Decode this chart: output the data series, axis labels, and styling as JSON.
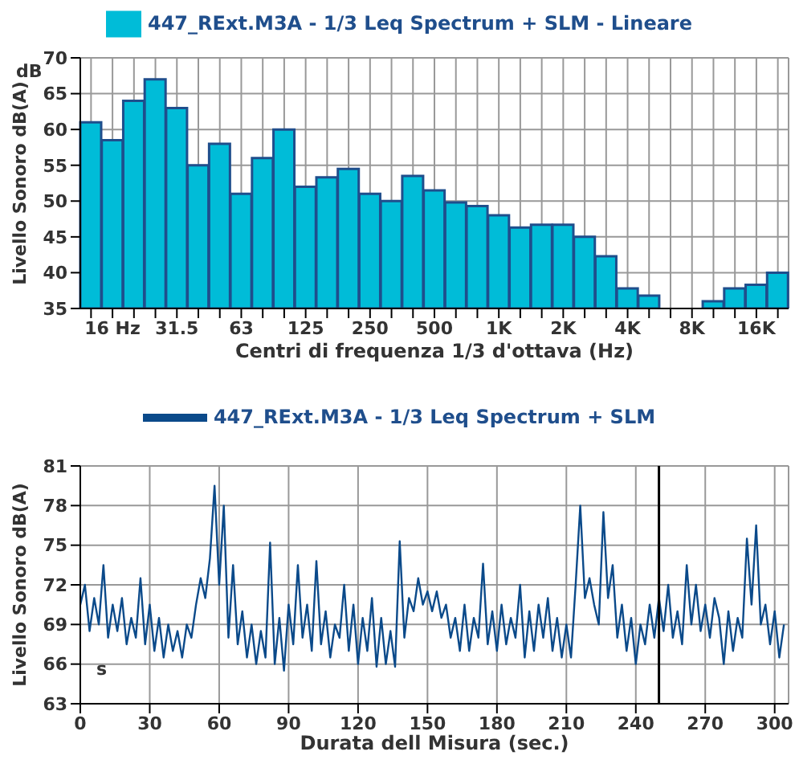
{
  "chart_data": [
    {
      "type": "bar",
      "categories": [
        null,
        "16 Hz",
        null,
        null,
        "31.5",
        null,
        null,
        "63",
        null,
        null,
        "125",
        null,
        null,
        "250",
        null,
        null,
        "500",
        null,
        null,
        "1K",
        null,
        null,
        "2K",
        null,
        null,
        "4K",
        null,
        null,
        "8K",
        null,
        null,
        "16K",
        null
      ],
      "series": [
        {
          "name": "447_RExt.M3A - 1/3 Leq Spectrum + SLM - Lineare",
          "color": "#00bcd8",
          "values": [
            61,
            58.5,
            64,
            67,
            63,
            55,
            58,
            51,
            56,
            60,
            52,
            53.3,
            54.5,
            51,
            50,
            53.5,
            51.5,
            49.8,
            49.3,
            48,
            46.3,
            46.7,
            46.7,
            45,
            42.3,
            37.8,
            36.8,
            35,
            35,
            36,
            37.8,
            38.3,
            40
          ]
        }
      ],
      "xlabel": "Centri di frequenza 1/3 d'ottava (Hz)",
      "ylabel": "Livello Sonoro dB(A)",
      "annotations": [
        "dB"
      ],
      "ylim": [
        35,
        70
      ],
      "yticks": [
        35,
        40,
        45,
        50,
        55,
        60,
        65,
        70
      ],
      "grid": true,
      "legend": "top"
    },
    {
      "type": "line",
      "x": [
        0,
        2,
        4,
        6,
        8,
        10,
        12,
        14,
        16,
        18,
        20,
        22,
        24,
        26,
        28,
        30,
        32,
        34,
        36,
        38,
        40,
        42,
        44,
        46,
        48,
        50,
        52,
        54,
        56,
        58,
        60,
        62,
        64,
        66,
        68,
        70,
        72,
        74,
        76,
        78,
        80,
        82,
        84,
        86,
        88,
        90,
        92,
        94,
        96,
        98,
        100,
        102,
        104,
        106,
        108,
        110,
        112,
        114,
        116,
        118,
        120,
        122,
        124,
        126,
        128,
        130,
        132,
        134,
        136,
        138,
        140,
        142,
        144,
        146,
        148,
        150,
        152,
        154,
        156,
        158,
        160,
        162,
        164,
        166,
        168,
        170,
        172,
        174,
        176,
        178,
        180,
        182,
        184,
        186,
        188,
        190,
        192,
        194,
        196,
        198,
        200,
        202,
        204,
        206,
        208,
        210,
        212,
        214,
        216,
        218,
        220,
        222,
        224,
        226,
        228,
        230,
        232,
        234,
        236,
        238,
        240,
        242,
        244,
        246,
        248,
        250,
        252,
        254,
        256,
        258,
        260,
        262,
        264,
        266,
        268,
        270,
        272,
        274,
        276,
        278,
        280,
        282,
        284,
        286,
        288,
        290,
        292,
        294,
        296,
        298,
        300,
        302,
        304
      ],
      "series": [
        {
          "name": "447_RExt.M3A - 1/3 Leq Spectrum + SLM",
          "color": "#0b4a8a",
          "values": [
            70.5,
            72,
            68.5,
            71,
            69,
            73.5,
            68,
            70.5,
            68.5,
            71,
            67.5,
            69.5,
            68,
            72.5,
            67.5,
            70.5,
            67,
            69.5,
            66.5,
            69,
            67,
            68.5,
            66.5,
            69,
            68,
            70.5,
            72.5,
            71,
            74,
            79.5,
            72,
            78,
            68,
            73.5,
            67.5,
            70,
            66.5,
            69,
            66,
            68.5,
            66.5,
            75.2,
            66,
            69.5,
            65.5,
            70.5,
            67.5,
            73.5,
            68,
            70.5,
            67,
            73.8,
            67.5,
            70,
            66.5,
            69,
            68,
            72,
            67,
            70.5,
            66,
            69.5,
            67,
            71,
            65.8,
            69.5,
            66,
            68.5,
            65.8,
            75.3,
            68,
            71,
            70,
            72.5,
            70.5,
            71.5,
            70,
            71.5,
            69.5,
            70.5,
            68,
            69.5,
            67,
            70.5,
            67,
            69.5,
            68,
            73.6,
            67.5,
            70,
            67,
            70.5,
            67.5,
            69.5,
            68,
            72,
            66.5,
            70,
            67,
            70.5,
            68,
            71,
            67,
            69.5,
            66.5,
            69,
            66.5,
            72,
            78,
            71,
            72.5,
            70.5,
            69,
            77.5,
            71,
            73.5,
            68,
            70.5,
            67,
            69.5,
            66,
            69,
            67.5,
            70.5,
            68,
            71,
            68.5,
            72,
            68,
            70,
            67.5,
            73.5,
            69,
            72,
            68.5,
            70.5,
            68,
            71,
            69.5,
            66,
            70,
            67,
            69.5,
            68,
            75.5,
            70.5,
            76.5,
            69,
            70.5,
            67.5,
            70,
            66.5,
            69
          ]
        }
      ],
      "xlabel": "Durata dell Misura (sec.)",
      "ylabel": "Livello Sonoro dB(A)",
      "annotations": [
        "s"
      ],
      "xlim": [
        0,
        306
      ],
      "xticks": [
        0,
        30,
        60,
        90,
        120,
        150,
        180,
        210,
        240,
        270,
        300
      ],
      "ylim": [
        63,
        81
      ],
      "yticks": [
        63,
        66,
        69,
        72,
        75,
        78,
        81
      ],
      "ref_lines": [
        {
          "axis": "x",
          "value": 250,
          "color": "#000000"
        }
      ],
      "grid": true,
      "legend": "top",
      "marker": "none",
      "line_style": "solid"
    }
  ]
}
